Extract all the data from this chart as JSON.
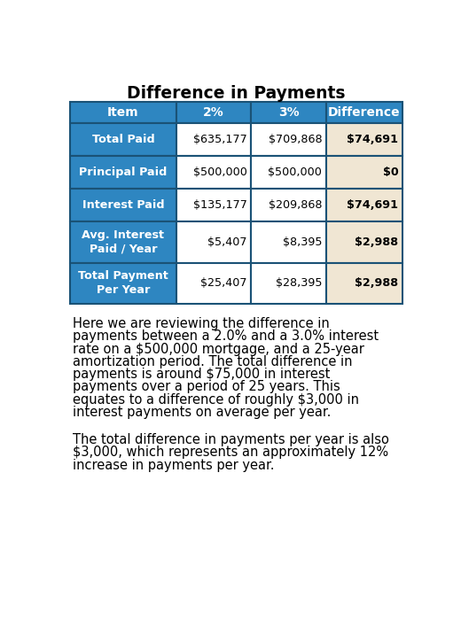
{
  "title": "Difference in Payments",
  "header": [
    "Item",
    "2%",
    "3%",
    "Difference"
  ],
  "rows": [
    [
      "Total Paid",
      "$635,177",
      "$709,868",
      "$74,691"
    ],
    [
      "Principal Paid",
      "$500,000",
      "$500,000",
      "$0"
    ],
    [
      "Interest Paid",
      "$135,177",
      "$209,868",
      "$74,691"
    ],
    [
      "Avg. Interest\nPaid / Year",
      "$5,407",
      "$8,395",
      "$2,988"
    ],
    [
      "Total Payment\nPer Year",
      "$25,407",
      "$28,395",
      "$2,988"
    ]
  ],
  "header_bg": "#2E86C1",
  "row_item_bg": "#2E86C1",
  "row_data_bg": "#FFFFFF",
  "row_diff_bg": "#F0E6D3",
  "header_text_color": "#FFFFFF",
  "item_text_color": "#FFFFFF",
  "data_text_color": "#000000",
  "diff_text_color": "#000000",
  "border_color": "#1A5276",
  "bg_color": "#FFFFFF",
  "paragraph1_lines": [
    "Here we are reviewing the difference in",
    "payments between a 2.0% and a 3.0% interest",
    "rate on a $500,000 mortgage, and a 25-year",
    "amortization period. The total difference in",
    "payments is around $75,000 in interest",
    "payments over a period of 25 years. This",
    "equates to a difference of roughly $3,000 in",
    "interest payments on average per year."
  ],
  "paragraph2_lines": [
    "The total difference in payments per year is also",
    "$3,000, which represents an approximately 12%",
    "increase in payments per year."
  ]
}
